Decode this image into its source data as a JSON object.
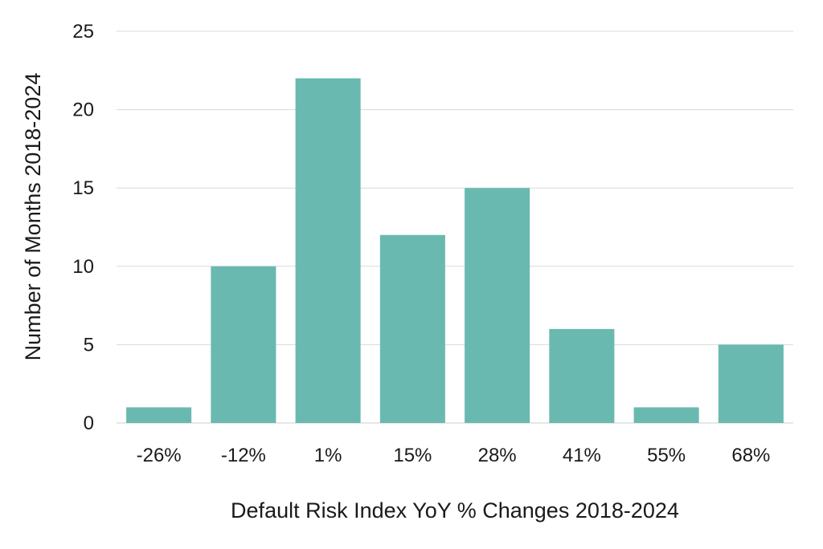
{
  "chart_data": {
    "type": "bar",
    "categories": [
      "-26%",
      "-12%",
      "1%",
      "15%",
      "28%",
      "41%",
      "55%",
      "68%"
    ],
    "values": [
      1,
      10,
      22,
      12,
      15,
      6,
      1,
      5
    ],
    "title": "",
    "xlabel": "Default Risk Index YoY % Changes 2018-2024",
    "ylabel": "Number of Months 2018-2024",
    "ylim": [
      0,
      25
    ],
    "yticks": [
      0,
      5,
      10,
      15,
      20,
      25
    ],
    "bar_color": "#6ab9b0",
    "grid": true,
    "legend": "none"
  }
}
